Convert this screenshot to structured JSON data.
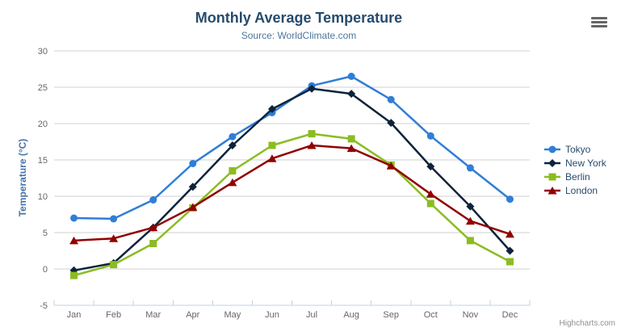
{
  "chart_data": {
    "type": "line",
    "title": "Monthly Average Temperature",
    "subtitle": "Source: WorldClimate.com",
    "categories": [
      "Jan",
      "Feb",
      "Mar",
      "Apr",
      "May",
      "Jun",
      "Jul",
      "Aug",
      "Sep",
      "Oct",
      "Nov",
      "Dec"
    ],
    "series": [
      {
        "name": "Tokyo",
        "marker": "circle",
        "color": "#2f7ed8",
        "values": [
          7.0,
          6.9,
          9.5,
          14.5,
          18.2,
          21.5,
          25.2,
          26.5,
          23.3,
          18.3,
          13.9,
          9.6
        ]
      },
      {
        "name": "New York",
        "marker": "diamond",
        "color": "#0d233a",
        "values": [
          -0.2,
          0.8,
          5.7,
          11.3,
          17.0,
          22.0,
          24.8,
          24.1,
          20.1,
          14.1,
          8.6,
          2.5
        ]
      },
      {
        "name": "Berlin",
        "marker": "square",
        "color": "#8bbc21",
        "values": [
          -0.9,
          0.6,
          3.5,
          8.4,
          13.5,
          17.0,
          18.6,
          17.9,
          14.3,
          9.0,
          3.9,
          1.0
        ]
      },
      {
        "name": "London",
        "marker": "triangle",
        "color": "#910000",
        "values": [
          3.9,
          4.2,
          5.7,
          8.5,
          11.9,
          15.2,
          17.0,
          16.6,
          14.2,
          10.3,
          6.6,
          4.8
        ]
      }
    ],
    "xlabel": "",
    "ylabel": "Temperature (°C)",
    "ylim": [
      -5,
      30
    ],
    "yticks": [
      -5,
      0,
      5,
      10,
      15,
      20,
      25,
      30
    ],
    "ytick_interval": 5,
    "grid": true,
    "legend_position": "right-middle"
  },
  "credits": {
    "label": "Highcharts.com"
  },
  "export_menu": {
    "icon": "hamburger-icon"
  },
  "style_colors": {
    "background": "#ffffff",
    "title": "#274b6d",
    "subtitle": "#4d759e",
    "y_axis_title": "#4572a7",
    "axis_labels": "#666666",
    "axis_line": "#c0d0e0",
    "gridline": "#d0d0d0",
    "legend_text": "#274b6d",
    "credits_text": "#909090",
    "export_icon": "#666666"
  }
}
